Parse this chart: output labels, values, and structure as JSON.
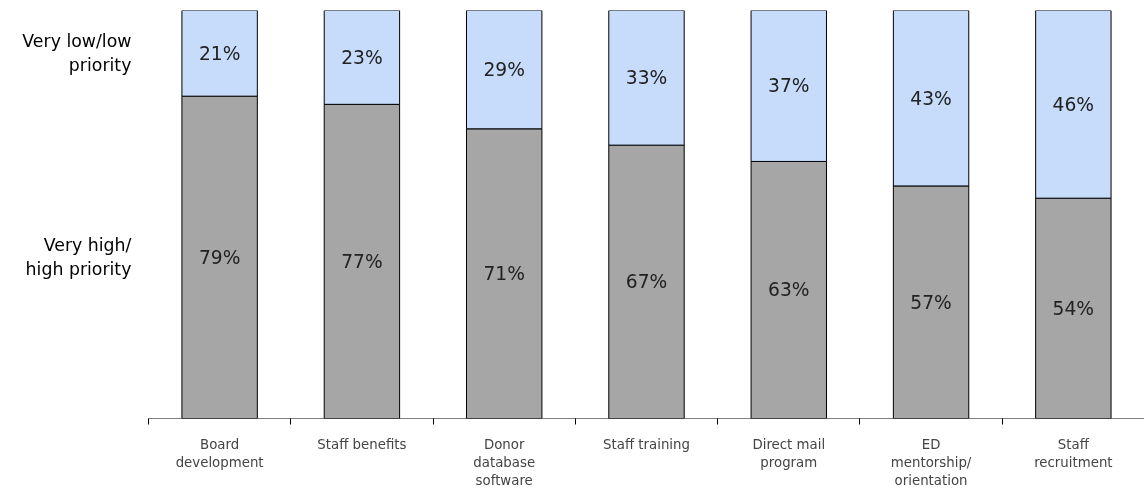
{
  "chart_data": {
    "type": "bar",
    "stacked": true,
    "categories": [
      "Board\ndevelopment",
      "Staff benefits",
      "Donor\ndatabase\nsoftware",
      "Staff training",
      "Direct mail\nprogram",
      "ED\nmentorship/\norientation",
      "Staff\nrecruitment"
    ],
    "series": [
      {
        "name": "Very high/\nhigh priority",
        "color": "#a6a6a6",
        "values": [
          79,
          77,
          71,
          67,
          63,
          57,
          54
        ],
        "value_labels": [
          "79%",
          "77%",
          "71%",
          "67%",
          "63%",
          "57%",
          "54%"
        ]
      },
      {
        "name": "Very low/low\npriority",
        "color": "#c6dcfa",
        "values": [
          21,
          23,
          29,
          33,
          37,
          43,
          46
        ],
        "value_labels": [
          "21%",
          "23%",
          "29%",
          "33%",
          "37%",
          "43%",
          "46%"
        ]
      }
    ]
  }
}
